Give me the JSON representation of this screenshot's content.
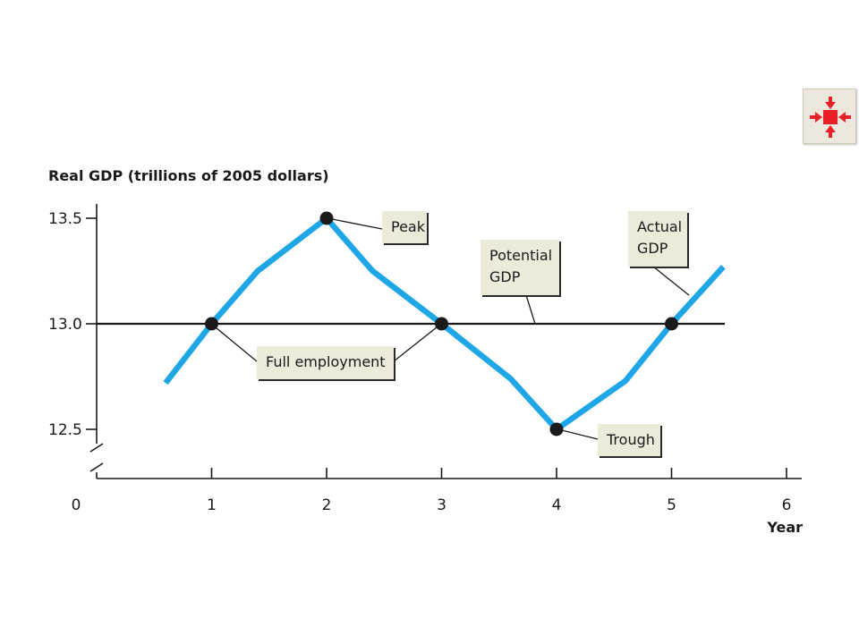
{
  "chart_data": {
    "type": "line",
    "ylabel": "Real GDP (trillions of 2005 dollars)",
    "xlabel": "Year",
    "x_ticks": [
      0,
      1,
      2,
      3,
      4,
      5,
      6
    ],
    "x_tick_labels": [
      "0",
      "1",
      "2",
      "3",
      "4",
      "5",
      "6"
    ],
    "y_ticks": [
      12.5,
      13.0,
      13.5
    ],
    "y_tick_labels": [
      "12.5",
      "13.0",
      "13.5"
    ],
    "xlim": [
      0,
      6
    ],
    "ylim_broken_axis": true,
    "grid": false,
    "series": [
      {
        "name": "Actual GDP",
        "color": "#1ea6e6",
        "x": [
          0.6,
          1.0,
          1.4,
          2.0,
          2.4,
          3.0,
          3.6,
          4.0,
          4.6,
          5.0,
          5.45
        ],
        "y": [
          12.72,
          13.0,
          13.25,
          13.5,
          13.25,
          13.0,
          12.74,
          12.5,
          12.73,
          13.0,
          13.27
        ]
      },
      {
        "name": "Potential GDP",
        "color": "#1a1a1a",
        "x": [
          0,
          5.45
        ],
        "y": [
          13.0,
          13.0
        ]
      }
    ],
    "points": [
      {
        "x": 1,
        "y": 13.0
      },
      {
        "x": 2,
        "y": 13.5
      },
      {
        "x": 3,
        "y": 13.0
      },
      {
        "x": 4,
        "y": 12.5
      },
      {
        "x": 5,
        "y": 13.0
      }
    ],
    "annotations": [
      {
        "id": "peak",
        "lines": [
          "Peak"
        ]
      },
      {
        "id": "full-employment",
        "lines": [
          "Full employment"
        ]
      },
      {
        "id": "trough",
        "lines": [
          "Trough"
        ]
      },
      {
        "id": "potential-gdp",
        "lines": [
          "Potential",
          "GDP"
        ]
      },
      {
        "id": "actual-gdp",
        "lines": [
          "Actual",
          "GDP"
        ]
      }
    ]
  },
  "expand_button": {
    "icon": "expand-arrows-icon",
    "color": "#e8202a"
  }
}
